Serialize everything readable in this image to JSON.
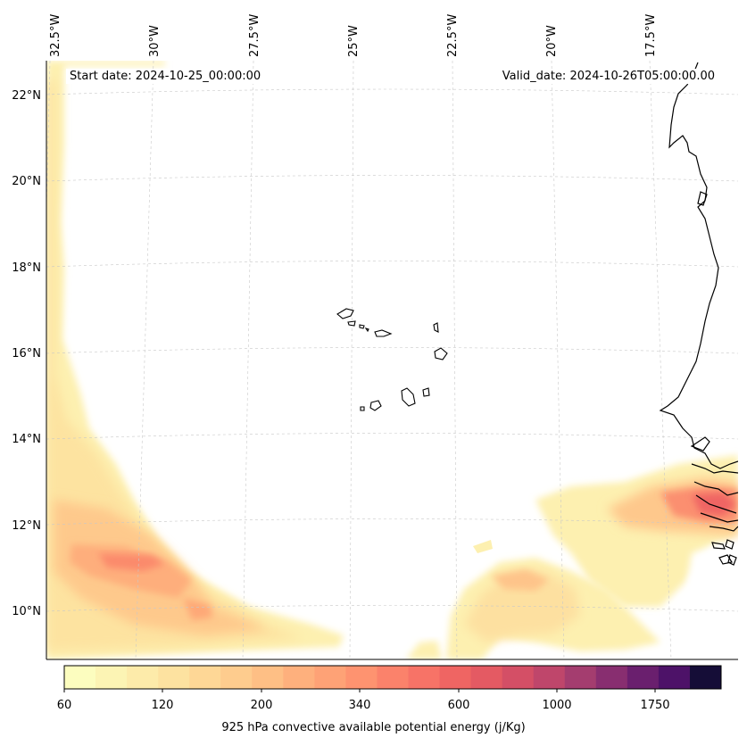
{
  "annotations": {
    "start_date": "Start date: 2024-10-25_00:00:00",
    "valid_date": "Valid_date: 2024-10-26T05:00:00.00"
  },
  "map": {
    "projection": "lambert-conformal",
    "lon_labels": [
      "32.5°W",
      "30°W",
      "27.5°W",
      "25°W",
      "22.5°W",
      "20°W",
      "17.5°W"
    ],
    "lat_labels": [
      "22°N",
      "20°N",
      "18°N",
      "16°N",
      "14°N",
      "12°N",
      "10°N"
    ],
    "gridlines": true,
    "features": [
      "coastline-west-africa",
      "cape-verde-islands"
    ]
  },
  "colorbar": {
    "label": "925 hPa convective available potential energy (j/Kg)",
    "tick_labels": [
      "60",
      "120",
      "200",
      "340",
      "600",
      "1000",
      "1750"
    ],
    "colors": [
      "#fcfdbf",
      "#fcf4b4",
      "#fdebaa",
      "#fde2a0",
      "#fed796",
      "#fecc8e",
      "#febf85",
      "#feb07d",
      "#fea276",
      "#fe9370",
      "#fb826b",
      "#f77367",
      "#ef6563",
      "#e45a63",
      "#d44f66",
      "#bf466b",
      "#a43d6f",
      "#882e70",
      "#6a1f6e",
      "#4d1268",
      "#150d37"
    ]
  }
}
